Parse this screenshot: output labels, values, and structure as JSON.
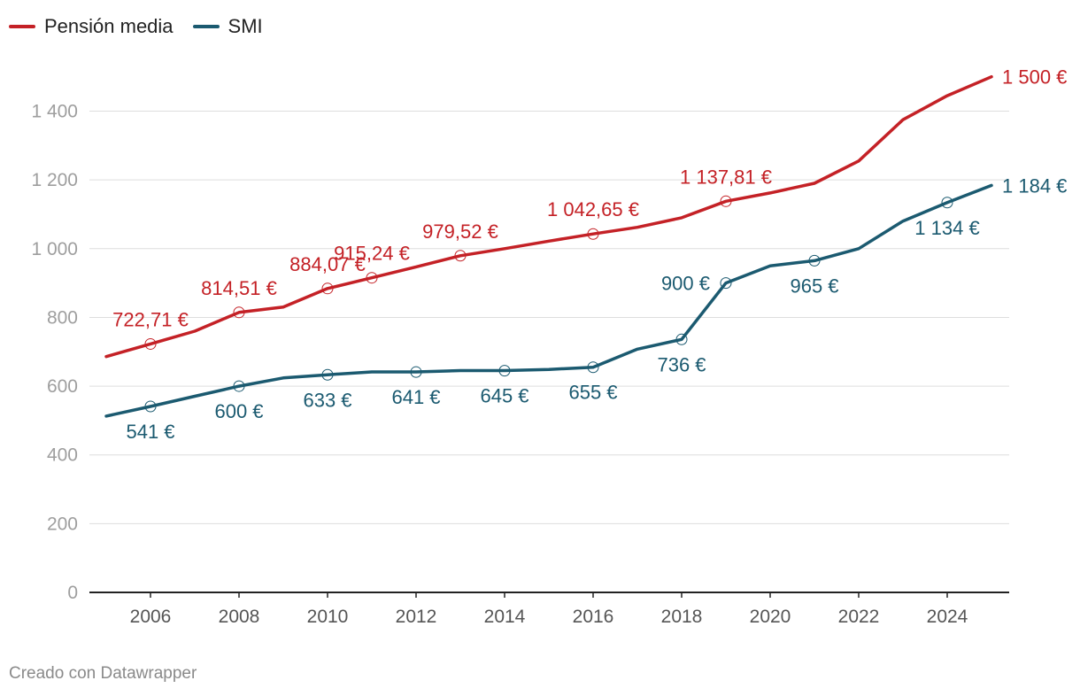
{
  "chart_data": {
    "type": "line",
    "title": "",
    "xlabel": "",
    "ylabel": "",
    "ylim": [
      0,
      1500
    ],
    "xlim": [
      2005,
      2025
    ],
    "y_ticks": [
      {
        "value": 0,
        "label": "0"
      },
      {
        "value": 200,
        "label": "200"
      },
      {
        "value": 400,
        "label": "400"
      },
      {
        "value": 600,
        "label": "600"
      },
      {
        "value": 800,
        "label": "800"
      },
      {
        "value": 1000,
        "label": "1 000"
      },
      {
        "value": 1200,
        "label": "1 200"
      },
      {
        "value": 1400,
        "label": "1 400"
      }
    ],
    "x_ticks": [
      "2006",
      "2008",
      "2010",
      "2012",
      "2014",
      "2016",
      "2018",
      "2020",
      "2022",
      "2024"
    ],
    "x": [
      2005,
      2006,
      2007,
      2008,
      2009,
      2010,
      2011,
      2012,
      2013,
      2014,
      2015,
      2016,
      2017,
      2018,
      2019,
      2020,
      2021,
      2022,
      2023,
      2024,
      2025
    ],
    "series": [
      {
        "name": "Pensión media",
        "color": "#c42126",
        "values": [
          686,
          722.71,
          760,
          814.51,
          830,
          884.07,
          915.24,
          947,
          979.52,
          1000,
          1022,
          1042.65,
          1062,
          1090,
          1137.81,
          1162,
          1190,
          1255,
          1375,
          1445,
          1500
        ],
        "annotations": [
          {
            "x": 2006,
            "value": 722.71,
            "label": "722,71 €",
            "pos": "above"
          },
          {
            "x": 2008,
            "value": 814.51,
            "label": "814,51 €",
            "pos": "above"
          },
          {
            "x": 2010,
            "value": 884.07,
            "label": "884,07 €",
            "pos": "above"
          },
          {
            "x": 2011,
            "value": 915.24,
            "label": "915,24 €",
            "pos": "above"
          },
          {
            "x": 2013,
            "value": 979.52,
            "label": "979,52 €",
            "pos": "above"
          },
          {
            "x": 2016,
            "value": 1042.65,
            "label": "1 042,65 €",
            "pos": "above"
          },
          {
            "x": 2019,
            "value": 1137.81,
            "label": "1 137,81 €",
            "pos": "above"
          }
        ],
        "end_label": "1 500 €"
      },
      {
        "name": "SMI",
        "color": "#1b5a70",
        "values": [
          513,
          541,
          570.6,
          600,
          624,
          633.3,
          641.4,
          641.4,
          645.3,
          645.3,
          648.6,
          655.2,
          707.6,
          735.9,
          900,
          950,
          965,
          1000,
          1080,
          1134,
          1184
        ],
        "annotations": [
          {
            "x": 2006,
            "value": 541,
            "label": "541 €",
            "pos": "below"
          },
          {
            "x": 2008,
            "value": 600,
            "label": "600 €",
            "pos": "below"
          },
          {
            "x": 2010,
            "value": 633,
            "label": "633 €",
            "pos": "below"
          },
          {
            "x": 2012,
            "value": 641,
            "label": "641 €",
            "pos": "below"
          },
          {
            "x": 2014,
            "value": 645,
            "label": "645 €",
            "pos": "below"
          },
          {
            "x": 2016,
            "value": 655,
            "label": "655 €",
            "pos": "below"
          },
          {
            "x": 2018,
            "value": 736,
            "label": "736 €",
            "pos": "below"
          },
          {
            "x": 2019,
            "value": 900,
            "label": "900 €",
            "pos": "left"
          },
          {
            "x": 2021,
            "value": 965,
            "label": "965 €",
            "pos": "below"
          },
          {
            "x": 2024,
            "value": 1134,
            "label": "1 134 €",
            "pos": "below"
          }
        ],
        "end_label": "1 184 €"
      }
    ],
    "legend": "top-left",
    "grid": true
  },
  "footer": {
    "credit": "Creado con Datawrapper"
  }
}
